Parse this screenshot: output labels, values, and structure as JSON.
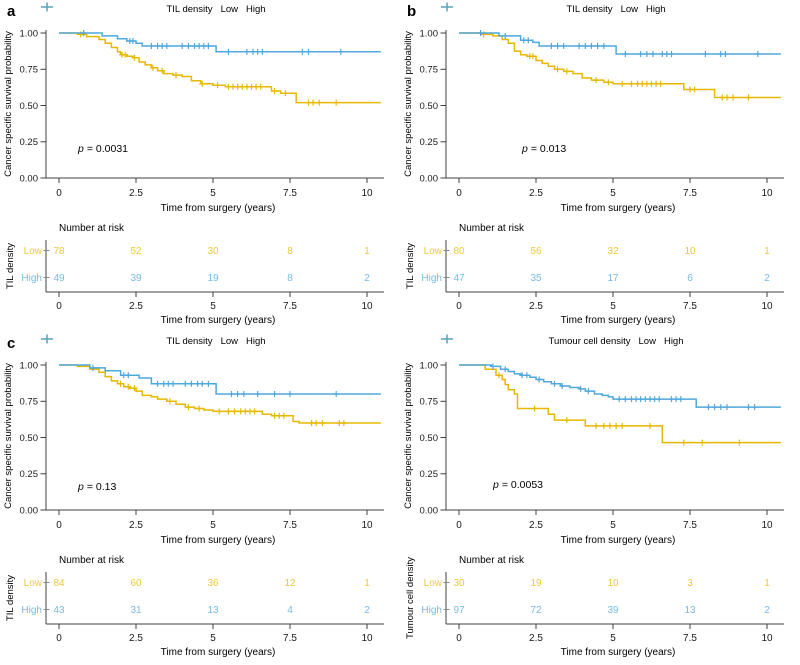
{
  "figure": {
    "background": "#ffffff",
    "axis_color": "#404040",
    "text_color": "#000000",
    "series_colors": {
      "Low": "#E7B800",
      "High": "#4FA8DC"
    },
    "risk_text_colors": {
      "Low": "#E9C95F",
      "High": "#8FC2E2"
    },
    "xlabel": "Time from surgery (years)",
    "ylabel": "Cancer specific survival probability",
    "risk_title": "Number at risk",
    "p_symbol": "p",
    "x_tick_values": [
      0,
      2.5,
      5,
      7.5,
      10
    ],
    "x_tick_labels": [
      "0",
      "2.5",
      "5",
      "7.5",
      "10"
    ],
    "y_tick_values": [
      0,
      0.25,
      0.5,
      0.75,
      1
    ],
    "y_tick_labels": [
      "0.00",
      "0.25",
      "0.50",
      "0.75",
      "1.00"
    ],
    "legend_marker": "plus-censor-mark"
  },
  "chart_data": [
    {
      "panel_label": "a",
      "type": "line",
      "subtype": "kaplan-meier-step",
      "legend_title": "TIL density",
      "legend_entries": [
        "Low",
        "High"
      ],
      "p_display": "= 0.0031",
      "p_pos": [
        78,
        152
      ],
      "x_range": [
        0,
        10.45
      ],
      "y_range": [
        0,
        1
      ],
      "series": [
        {
          "name": "Low",
          "color": "#E7B800",
          "steps": [
            [
              0.6,
              0.99
            ],
            [
              0.9,
              0.975
            ],
            [
              1.3,
              0.955
            ],
            [
              1.5,
              0.93
            ],
            [
              1.7,
              0.9
            ],
            [
              1.9,
              0.87
            ],
            [
              2.0,
              0.85
            ],
            [
              2.2,
              0.84
            ],
            [
              2.4,
              0.83
            ],
            [
              2.6,
              0.8
            ],
            [
              2.8,
              0.78
            ],
            [
              3.0,
              0.76
            ],
            [
              3.2,
              0.74
            ],
            [
              3.4,
              0.72
            ],
            [
              3.7,
              0.71
            ],
            [
              4.0,
              0.7
            ],
            [
              4.3,
              0.67
            ],
            [
              4.6,
              0.65
            ],
            [
              5.0,
              0.64
            ],
            [
              5.4,
              0.63
            ],
            [
              6.9,
              0.6
            ],
            [
              7.2,
              0.585
            ],
            [
              7.7,
              0.52
            ]
          ],
          "censor_x": [
            0.7,
            2.05,
            2.15,
            2.45,
            3.05,
            3.35,
            3.8,
            4.65,
            5.15,
            5.5,
            5.65,
            5.8,
            5.95,
            6.1,
            6.25,
            6.4,
            6.55,
            7.0,
            7.35,
            8.1,
            8.25,
            8.45,
            9.0
          ]
        },
        {
          "name": "High",
          "color": "#4FA8DC",
          "steps": [
            [
              1.4,
              0.98
            ],
            [
              1.9,
              0.96
            ],
            [
              2.2,
              0.945
            ],
            [
              2.5,
              0.93
            ],
            [
              2.7,
              0.91
            ],
            [
              5.1,
              0.87
            ]
          ],
          "censor_x": [
            0.8,
            2.3,
            2.4,
            3.0,
            3.2,
            3.35,
            3.5,
            4.0,
            4.2,
            4.4,
            4.55,
            4.7,
            4.85,
            5.5,
            6.1,
            6.3,
            6.45,
            6.6,
            7.9,
            8.1,
            9.15
          ]
        }
      ],
      "risk_table": {
        "axis_label": "TIL density",
        "rows": [
          {
            "name": "Low",
            "counts": [
              78,
              52,
              30,
              8,
              1
            ]
          },
          {
            "name": "High",
            "counts": [
              49,
              39,
              19,
              8,
              2
            ]
          }
        ]
      }
    },
    {
      "panel_label": "b",
      "type": "line",
      "subtype": "kaplan-meier-step",
      "legend_title": "TIL density",
      "legend_entries": [
        "Low",
        "High"
      ],
      "p_display": "= 0.013",
      "p_pos": [
        122,
        152
      ],
      "x_range": [
        0,
        10.45
      ],
      "y_range": [
        0,
        1
      ],
      "series": [
        {
          "name": "Low",
          "color": "#E7B800",
          "steps": [
            [
              0.7,
              0.99
            ],
            [
              1.1,
              0.98
            ],
            [
              1.4,
              0.955
            ],
            [
              1.6,
              0.93
            ],
            [
              1.8,
              0.875
            ],
            [
              2.0,
              0.85
            ],
            [
              2.2,
              0.84
            ],
            [
              2.5,
              0.81
            ],
            [
              2.7,
              0.79
            ],
            [
              2.9,
              0.77
            ],
            [
              3.1,
              0.75
            ],
            [
              3.4,
              0.735
            ],
            [
              3.7,
              0.72
            ],
            [
              4.0,
              0.69
            ],
            [
              4.3,
              0.675
            ],
            [
              4.7,
              0.66
            ],
            [
              5.0,
              0.65
            ],
            [
              7.3,
              0.61
            ],
            [
              8.3,
              0.555
            ]
          ],
          "censor_x": [
            0.8,
            2.3,
            2.4,
            3.2,
            3.5,
            4.45,
            4.85,
            5.3,
            5.6,
            5.8,
            5.95,
            6.1,
            6.25,
            6.4,
            6.55,
            7.5,
            7.65,
            8.55,
            8.7,
            8.9,
            9.4
          ]
        },
        {
          "name": "High",
          "color": "#4FA8DC",
          "steps": [
            [
              1.3,
              0.98
            ],
            [
              2.0,
              0.95
            ],
            [
              2.4,
              0.935
            ],
            [
              2.6,
              0.91
            ],
            [
              5.1,
              0.855
            ]
          ],
          "censor_x": [
            0.7,
            1.5,
            2.1,
            2.25,
            3.0,
            3.2,
            3.4,
            3.9,
            4.1,
            4.3,
            4.5,
            4.7,
            5.4,
            5.9,
            6.1,
            6.3,
            6.6,
            6.75,
            6.9,
            8.0,
            8.5,
            8.65,
            9.7
          ]
        }
      ],
      "risk_table": {
        "axis_label": "TIL density",
        "rows": [
          {
            "name": "Low",
            "counts": [
              80,
              56,
              32,
              10,
              1
            ]
          },
          {
            "name": "High",
            "counts": [
              47,
              35,
              17,
              6,
              2
            ]
          }
        ]
      }
    },
    {
      "panel_label": "c",
      "type": "line",
      "subtype": "kaplan-meier-step",
      "legend_title": "TIL density",
      "legend_entries": [
        "Low",
        "High"
      ],
      "p_display": "= 0.13",
      "p_pos": [
        78,
        158
      ],
      "x_range": [
        0,
        10.45
      ],
      "y_range": [
        0,
        1
      ],
      "series": [
        {
          "name": "Low",
          "color": "#E7B800",
          "steps": [
            [
              0.6,
              0.99
            ],
            [
              1.0,
              0.97
            ],
            [
              1.3,
              0.95
            ],
            [
              1.5,
              0.92
            ],
            [
              1.7,
              0.89
            ],
            [
              1.9,
              0.87
            ],
            [
              2.1,
              0.85
            ],
            [
              2.3,
              0.84
            ],
            [
              2.5,
              0.82
            ],
            [
              2.7,
              0.79
            ],
            [
              3.0,
              0.78
            ],
            [
              3.2,
              0.765
            ],
            [
              3.5,
              0.75
            ],
            [
              3.8,
              0.73
            ],
            [
              4.1,
              0.71
            ],
            [
              4.4,
              0.7
            ],
            [
              4.7,
              0.69
            ],
            [
              5.0,
              0.68
            ],
            [
              6.6,
              0.66
            ],
            [
              6.9,
              0.65
            ],
            [
              7.6,
              0.61
            ],
            [
              7.8,
              0.6
            ]
          ],
          "censor_x": [
            2.0,
            2.25,
            2.45,
            3.6,
            4.2,
            4.55,
            5.2,
            5.5,
            5.7,
            5.9,
            6.05,
            6.2,
            6.35,
            7.0,
            7.15,
            7.3,
            8.2,
            8.35,
            8.55,
            9.1,
            9.25
          ]
        },
        {
          "name": "High",
          "color": "#4FA8DC",
          "steps": [
            [
              1.0,
              0.98
            ],
            [
              1.5,
              0.96
            ],
            [
              2.0,
              0.93
            ],
            [
              2.6,
              0.91
            ],
            [
              3.0,
              0.87
            ],
            [
              5.1,
              0.8
            ]
          ],
          "censor_x": [
            1.1,
            2.1,
            2.25,
            3.2,
            3.4,
            3.55,
            3.7,
            4.1,
            4.3,
            4.5,
            4.65,
            4.85,
            5.6,
            5.8,
            6.0,
            6.45,
            7.0,
            7.5,
            9.0
          ]
        }
      ],
      "risk_table": {
        "axis_label": "TIL density",
        "rows": [
          {
            "name": "Low",
            "counts": [
              84,
              60,
              36,
              12,
              1
            ]
          },
          {
            "name": "High",
            "counts": [
              43,
              31,
              13,
              4,
              2
            ]
          }
        ]
      }
    },
    {
      "panel_label": "",
      "type": "line",
      "subtype": "kaplan-meier-step",
      "legend_title": "Tumour cell density",
      "legend_entries": [
        "Low",
        "High"
      ],
      "p_display": "= 0.0053",
      "p_pos": [
        93,
        156
      ],
      "x_range": [
        0,
        10.45
      ],
      "y_range": [
        0,
        1
      ],
      "series": [
        {
          "name": "Low",
          "color": "#E7B800",
          "steps": [
            [
              0.85,
              0.97
            ],
            [
              1.2,
              0.93
            ],
            [
              1.4,
              0.9
            ],
            [
              1.5,
              0.865
            ],
            [
              1.6,
              0.83
            ],
            [
              1.8,
              0.8
            ],
            [
              1.9,
              0.7
            ],
            [
              2.9,
              0.66
            ],
            [
              3.1,
              0.62
            ],
            [
              4.1,
              0.58
            ],
            [
              6.6,
              0.465
            ]
          ],
          "censor_x": [
            1.3,
            2.45,
            3.5,
            4.45,
            4.7,
            4.9,
            5.1,
            5.3,
            6.2,
            7.3,
            7.9,
            9.1
          ]
        },
        {
          "name": "High",
          "color": "#4FA8DC",
          "steps": [
            [
              1.05,
              0.99
            ],
            [
              1.35,
              0.97
            ],
            [
              1.6,
              0.955
            ],
            [
              1.8,
              0.94
            ],
            [
              2.0,
              0.93
            ],
            [
              2.3,
              0.915
            ],
            [
              2.5,
              0.9
            ],
            [
              2.75,
              0.885
            ],
            [
              3.0,
              0.87
            ],
            [
              3.3,
              0.855
            ],
            [
              3.6,
              0.845
            ],
            [
              3.9,
              0.835
            ],
            [
              4.1,
              0.82
            ],
            [
              4.4,
              0.8
            ],
            [
              4.65,
              0.79
            ],
            [
              4.85,
              0.78
            ],
            [
              5.0,
              0.765
            ],
            [
              7.7,
              0.71
            ]
          ],
          "censor_x": [
            1.1,
            1.5,
            2.05,
            2.2,
            2.6,
            3.1,
            3.35,
            3.95,
            4.2,
            5.2,
            5.4,
            5.6,
            5.75,
            5.9,
            6.05,
            6.2,
            6.35,
            6.5,
            6.9,
            7.05,
            7.2,
            8.1,
            8.3,
            8.5,
            8.7,
            9.4,
            9.6
          ]
        }
      ],
      "risk_table": {
        "axis_label": "Tumour cell density",
        "rows": [
          {
            "name": "Low",
            "counts": [
              30,
              19,
              10,
              3,
              1
            ]
          },
          {
            "name": "High",
            "counts": [
              97,
              72,
              39,
              13,
              2
            ]
          }
        ]
      }
    }
  ]
}
